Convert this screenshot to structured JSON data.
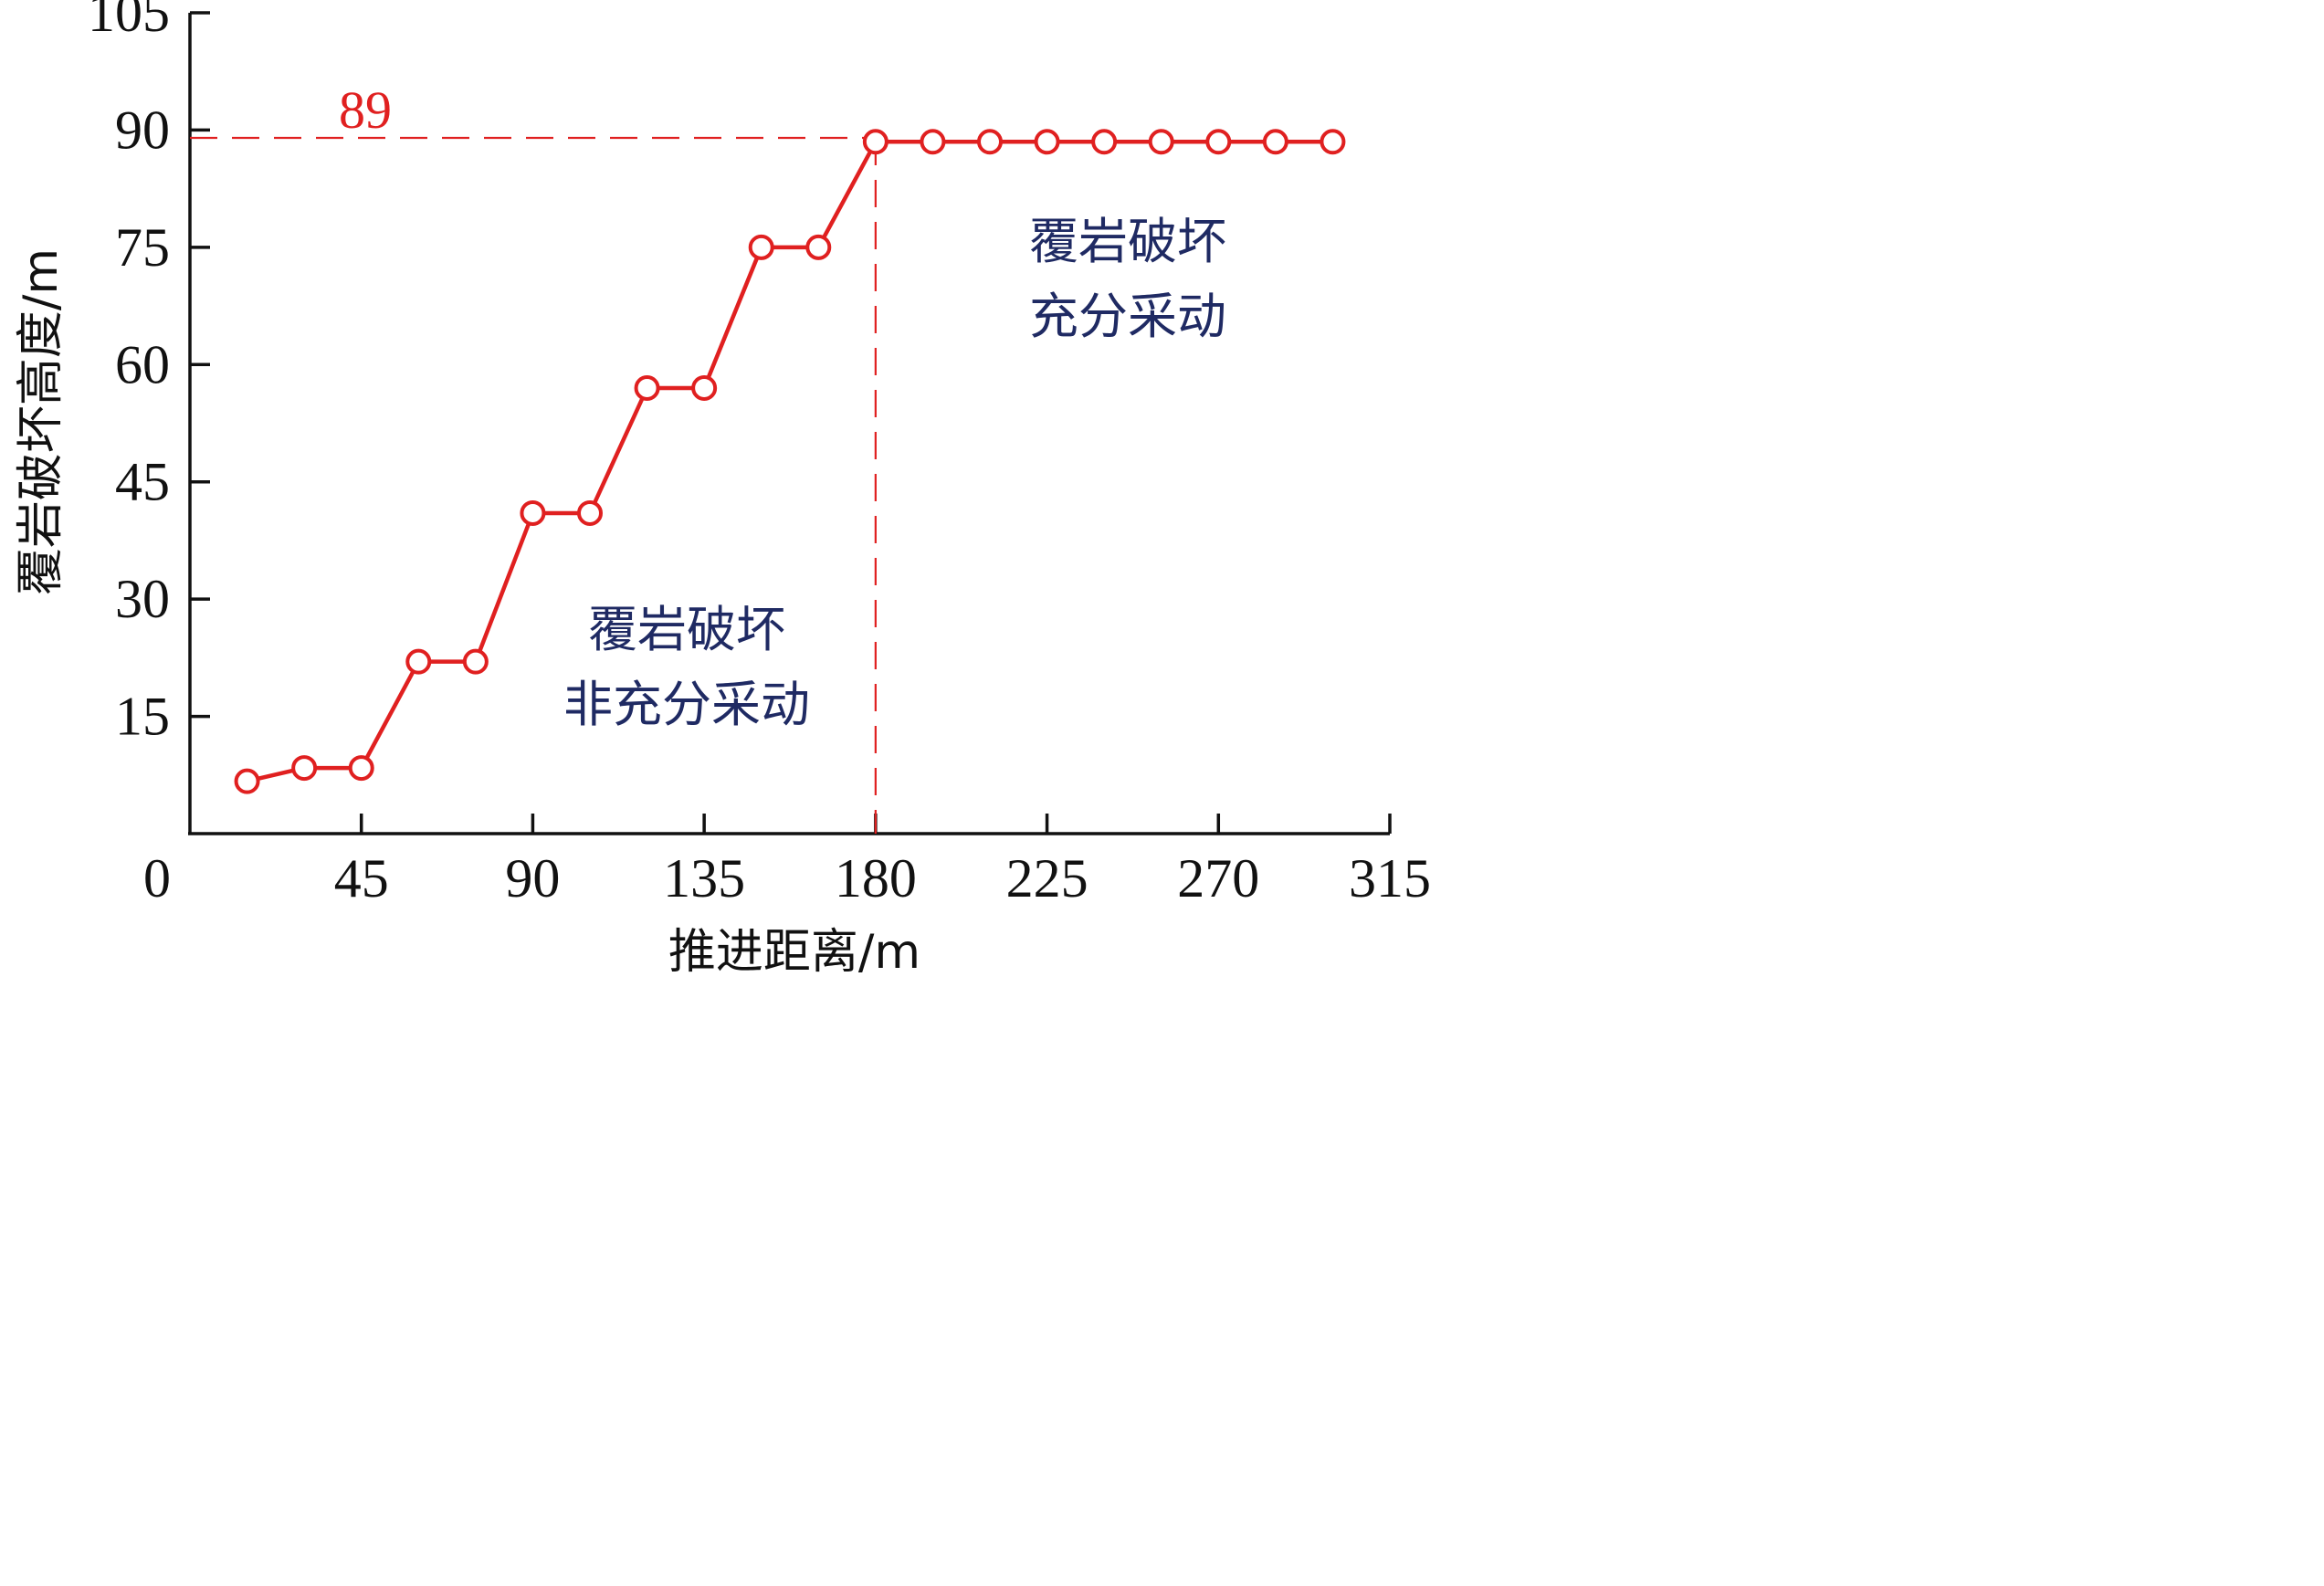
{
  "chart_data": {
    "type": "line",
    "title": "",
    "xlabel": "推进距离/m",
    "ylabel": "覆岩破坏高度/m",
    "xlim": [
      0,
      315
    ],
    "ylim": [
      0,
      105
    ],
    "x_ticks": [
      "0",
      "45",
      "90",
      "135",
      "180",
      "225",
      "270",
      "315"
    ],
    "y_ticks": [
      "15",
      "30",
      "45",
      "60",
      "75",
      "90",
      "105"
    ],
    "grid": false,
    "series": [
      {
        "x": [
          15,
          30,
          45,
          60,
          75,
          90,
          105,
          120,
          135,
          150,
          165,
          180,
          195,
          210,
          225,
          240,
          255,
          270,
          285,
          300
        ],
        "values": [
          6.7,
          8.4,
          8.4,
          22,
          22,
          41,
          41,
          57,
          57,
          75,
          75,
          88.5,
          88.5,
          88.5,
          88.5,
          88.5,
          88.5,
          88.5,
          88.5,
          88.5
        ]
      }
    ],
    "reference_lines": {
      "horizontal_y": 89,
      "horizontal_label": "89",
      "vertical_x": 180
    },
    "annotations": [
      {
        "line1": "覆岩破坏",
        "line2": "非充分采动"
      },
      {
        "line1": "覆岩破坏",
        "line2": "充分采动"
      }
    ],
    "colors": {
      "series": "#e02020",
      "reference": "#e02020",
      "zone_text": "#1f2a63",
      "axis": "#111111"
    }
  }
}
